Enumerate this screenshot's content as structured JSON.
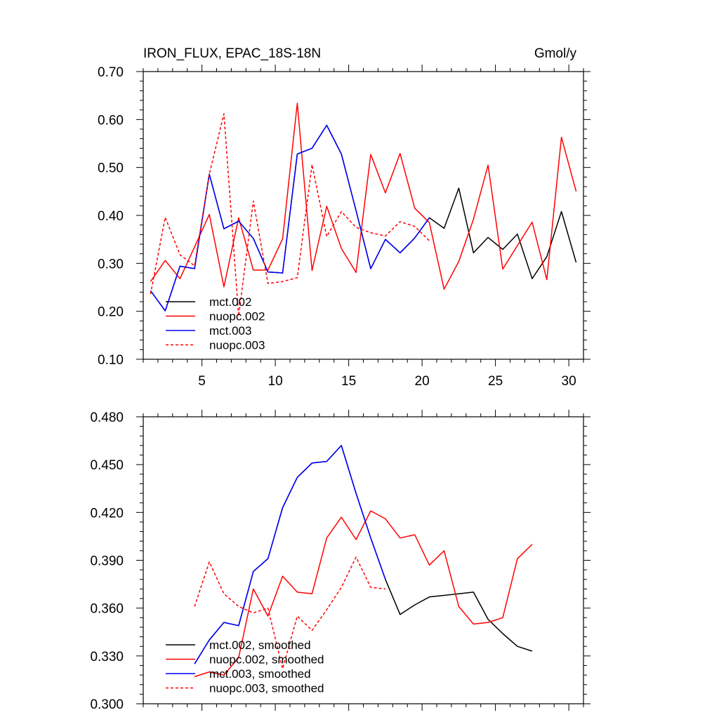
{
  "chart_data": [
    {
      "type": "line",
      "title": "IRON_FLUX, EPAC_18S-18N",
      "units": "Gmol/y",
      "xlabel": "",
      "ylabel": "",
      "xlim": [
        1,
        31
      ],
      "ylim": [
        0.1,
        0.7
      ],
      "xticks": [
        5,
        10,
        15,
        20,
        25,
        30
      ],
      "xtick_labels": [
        "5",
        "10",
        "15",
        "20",
        "25",
        "30"
      ],
      "yticks": [
        0.1,
        0.2,
        0.3,
        0.4,
        0.5,
        0.6,
        0.7
      ],
      "ytick_labels": [
        "0.10",
        "0.20",
        "0.30",
        "0.40",
        "0.50",
        "0.60",
        "0.70"
      ],
      "legend_position": "bottom-left",
      "series": [
        {
          "name": "mct.002",
          "color": "#000000",
          "dash": "solid",
          "x": [
            1.5,
            2.5,
            3.5,
            4.5,
            5.5,
            6.5,
            7.5,
            8.5,
            9.5,
            10.5,
            11.5,
            12.5,
            13.5,
            14.5,
            15.5,
            16.5,
            17.5,
            18.5,
            19.5,
            20.5,
            21.5,
            22.5,
            23.5,
            24.5,
            25.5,
            26.5,
            27.5,
            28.5,
            29.5,
            30.5
          ],
          "y": [
            0.243,
            0.201,
            0.294,
            0.289,
            0.486,
            0.372,
            0.388,
            0.352,
            0.282,
            0.28,
            0.528,
            0.54,
            0.588,
            0.528,
            0.41,
            0.289,
            0.35,
            0.322,
            0.353,
            0.395,
            0.373,
            0.457,
            0.322,
            0.354,
            0.329,
            0.361,
            0.268,
            0.314,
            0.408,
            0.302
          ]
        },
        {
          "name": "nuopc.002",
          "color": "#ff0000",
          "dash": "solid",
          "x": [
            1.5,
            2.5,
            3.5,
            4.5,
            5.5,
            6.5,
            7.5,
            8.5,
            9.5,
            10.5,
            11.5,
            12.5,
            13.5,
            14.5,
            15.5,
            16.5,
            17.5,
            18.5,
            19.5,
            20.5,
            21.5,
            22.5,
            23.5,
            24.5,
            25.5,
            26.5,
            27.5,
            28.5,
            29.5,
            30.5
          ],
          "y": [
            0.262,
            0.306,
            0.268,
            0.334,
            0.402,
            0.251,
            0.395,
            0.286,
            0.286,
            0.351,
            0.634,
            0.285,
            0.419,
            0.331,
            0.281,
            0.527,
            0.447,
            0.529,
            0.415,
            0.385,
            0.246,
            0.304,
            0.392,
            0.505,
            0.288,
            0.337,
            0.386,
            0.266,
            0.563,
            0.45
          ]
        },
        {
          "name": "mct.003",
          "color": "#0000ff",
          "dash": "solid",
          "x": [
            1.5,
            2.5,
            3.5,
            4.5,
            5.5,
            6.5,
            7.5,
            8.5,
            9.5,
            10.5,
            11.5,
            12.5,
            13.5,
            14.5,
            15.5,
            16.5,
            17.5,
            18.5,
            19.5,
            20.5
          ],
          "y": [
            0.243,
            0.201,
            0.294,
            0.289,
            0.486,
            0.372,
            0.388,
            0.352,
            0.282,
            0.28,
            0.528,
            0.54,
            0.588,
            0.528,
            0.41,
            0.289,
            0.35,
            0.322,
            0.353,
            0.395
          ]
        },
        {
          "name": "nuopc.003",
          "color": "#ff0000",
          "dash": "dashed",
          "x": [
            1.5,
            2.5,
            3.5,
            4.5,
            5.5,
            6.5,
            7.5,
            8.5,
            9.5,
            10.5,
            11.5,
            12.5,
            13.5,
            14.5,
            15.5,
            16.5,
            17.5,
            18.5,
            19.5,
            20.5
          ],
          "y": [
            0.236,
            0.396,
            0.318,
            0.295,
            0.486,
            0.612,
            0.19,
            0.43,
            0.258,
            0.262,
            0.27,
            0.506,
            0.356,
            0.408,
            0.375,
            0.364,
            0.357,
            0.387,
            0.377,
            0.347
          ]
        }
      ]
    },
    {
      "type": "line",
      "title": "",
      "xlabel": "",
      "ylabel": "",
      "xlim": [
        1,
        31
      ],
      "ylim": [
        0.3,
        0.48
      ],
      "xticks": [
        5,
        10,
        15,
        20,
        25,
        30
      ],
      "yticks": [
        0.3,
        0.33,
        0.36,
        0.39,
        0.42,
        0.45,
        0.48
      ],
      "ytick_labels": [
        "0.300",
        "0.330",
        "0.360",
        "0.390",
        "0.420",
        "0.450",
        "0.480"
      ],
      "legend_position": "bottom-left",
      "series": [
        {
          "name": "mct.002, smoothed",
          "color": "#000000",
          "dash": "solid",
          "x": [
            4.5,
            5.5,
            6.5,
            7.5,
            8.5,
            9.5,
            10.5,
            11.5,
            12.5,
            13.5,
            14.5,
            15.5,
            16.5,
            17.5,
            18.5,
            19.5,
            20.5,
            21.5,
            22.5,
            23.5,
            24.5,
            25.5,
            26.5,
            27.5
          ],
          "y": [
            0.325,
            0.34,
            0.351,
            0.349,
            0.383,
            0.391,
            0.423,
            0.442,
            0.451,
            0.452,
            0.462,
            0.432,
            0.404,
            0.378,
            0.356,
            0.362,
            0.367,
            0.368,
            0.369,
            0.37,
            0.353,
            0.344,
            0.336,
            0.333
          ]
        },
        {
          "name": "nuopc.002, smoothed",
          "color": "#ff0000",
          "dash": "solid",
          "x": [
            4.5,
            5.5,
            6.5,
            7.5,
            8.5,
            9.5,
            10.5,
            11.5,
            12.5,
            13.5,
            14.5,
            15.5,
            16.5,
            17.5,
            18.5,
            19.5,
            20.5,
            21.5,
            22.5,
            23.5,
            24.5,
            25.5,
            26.5,
            27.5
          ],
          "y": [
            0.317,
            0.32,
            0.318,
            0.329,
            0.372,
            0.355,
            0.38,
            0.37,
            0.369,
            0.404,
            0.417,
            0.403,
            0.421,
            0.416,
            0.404,
            0.406,
            0.387,
            0.396,
            0.361,
            0.35,
            0.351,
            0.354,
            0.391,
            0.4
          ]
        },
        {
          "name": "mct.003, smoothed",
          "color": "#0000ff",
          "dash": "solid",
          "x": [
            4.5,
            5.5,
            6.5,
            7.5,
            8.5,
            9.5,
            10.5,
            11.5,
            12.5,
            13.5,
            14.5,
            15.5,
            16.5,
            17.5
          ],
          "y": [
            0.325,
            0.34,
            0.351,
            0.349,
            0.383,
            0.391,
            0.423,
            0.442,
            0.451,
            0.452,
            0.462,
            0.432,
            0.404,
            0.378
          ]
        },
        {
          "name": "nuopc.003, smoothed",
          "color": "#ff0000",
          "dash": "dashed",
          "x": [
            4.5,
            5.5,
            6.5,
            7.5,
            8.5,
            9.5,
            10.5,
            11.5,
            12.5,
            13.5,
            14.5,
            15.5,
            16.5,
            17.5
          ],
          "y": [
            0.361,
            0.389,
            0.369,
            0.361,
            0.357,
            0.36,
            0.322,
            0.355,
            0.346,
            0.359,
            0.373,
            0.392,
            0.373,
            0.372
          ]
        }
      ]
    }
  ]
}
